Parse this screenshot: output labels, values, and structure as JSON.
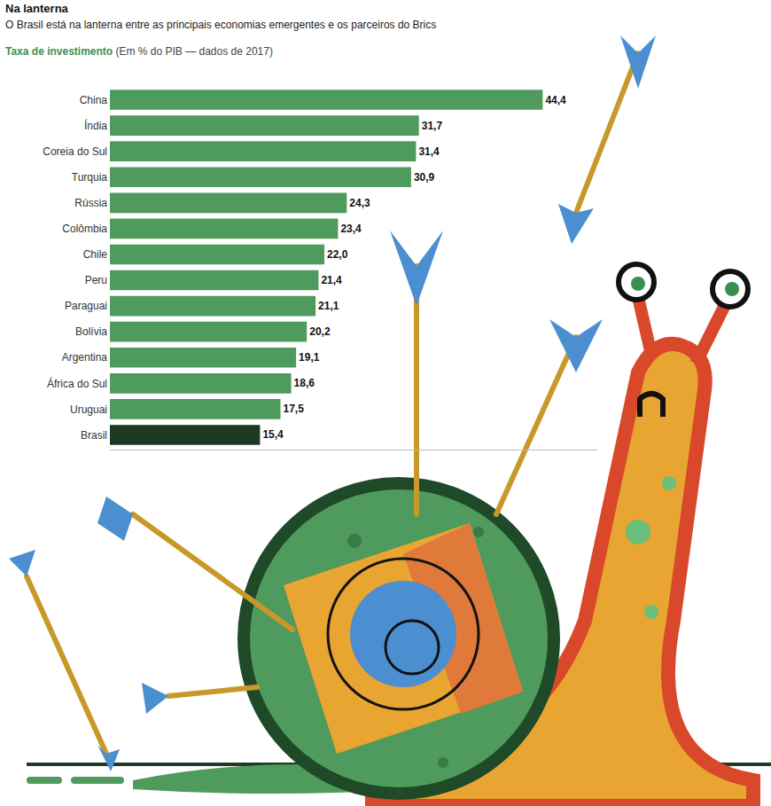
{
  "chart_data": {
    "type": "bar",
    "orientation": "horizontal",
    "title": "Na lanterna",
    "subtitle": "O Brasil está na lanterna entre as principais economias emergentes e os parceiros do Brics",
    "xlabel": "Taxa de investimento (Em % do PIB — dados de 2017)",
    "categories": [
      "China",
      "Índia",
      "Coreia do Sul",
      "Turquia",
      "Rússia",
      "Colômbia",
      "Chile",
      "Peru",
      "Paraguai",
      "Bolívia",
      "Argentina",
      "África do Sul",
      "Uruguai",
      "Brasil"
    ],
    "values": [
      44.4,
      31.7,
      31.4,
      30.9,
      24.3,
      23.4,
      22.0,
      21.4,
      21.1,
      20.2,
      19.1,
      18.6,
      17.5,
      15.4
    ],
    "value_labels": [
      "44,4",
      "31,7",
      "31,4",
      "30,9",
      "24,3",
      "23,4",
      "22,0",
      "21,4",
      "21,1",
      "20,2",
      "19,1",
      "18,6",
      "17,5",
      "15,4"
    ],
    "colors": [
      "#4f9a5d",
      "#4f9a5d",
      "#4f9a5d",
      "#4f9a5d",
      "#4f9a5d",
      "#4f9a5d",
      "#4f9a5d",
      "#4f9a5d",
      "#4f9a5d",
      "#4f9a5d",
      "#4f9a5d",
      "#4f9a5d",
      "#4f9a5d",
      "#1c3a22"
    ],
    "xlim": [
      0,
      50
    ],
    "xticks": [],
    "tick_labels": "y",
    "data_labels": true,
    "grid": false
  }
}
